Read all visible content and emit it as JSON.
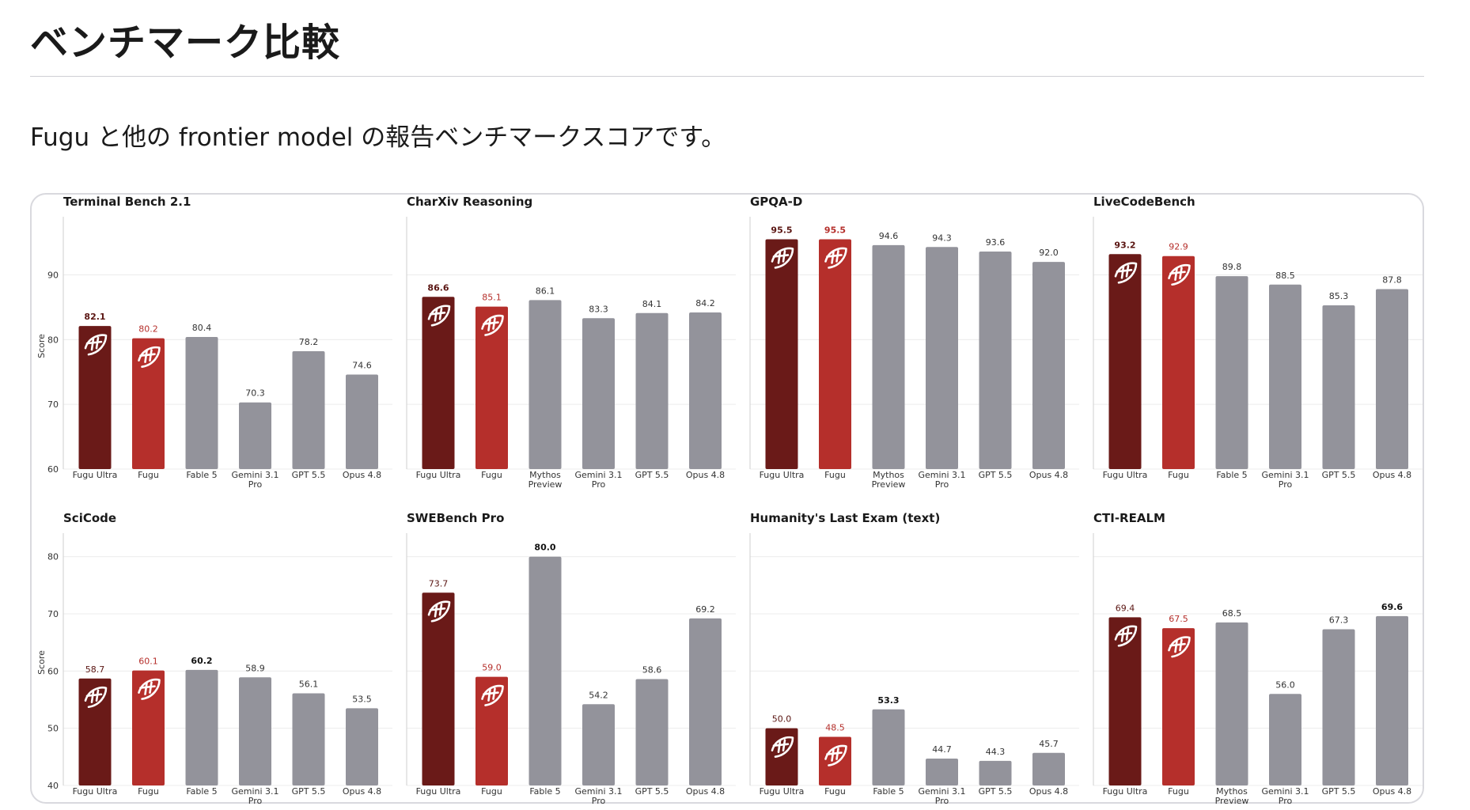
{
  "page": {
    "title": "ベンチマーク比較",
    "intro": "Fugu と他の frontier model の報告ベンチマークスコアです。"
  },
  "colors": {
    "fugu_ultra": "#6a1a18",
    "fugu": "#b52f2b",
    "other": "#93939b",
    "fugu_ultra_label": "#5a1512",
    "fugu_label": "#b52f2b",
    "other_label": "#333333",
    "grid": "#ececec",
    "axis": "#cfcfcf"
  },
  "icons": {
    "bar_logo": "fugu-fish-icon"
  },
  "chart_data": [
    {
      "type": "bar",
      "title": "Terminal Bench 2.1",
      "ylabel": "Score",
      "ylim": [
        60,
        98
      ],
      "yticks": [
        60,
        70,
        80,
        90
      ],
      "categories": [
        "Fugu Ultra",
        "Fugu",
        "Fable 5",
        "Gemini 3.1 Pro",
        "GPT 5.5",
        "Opus 4.8"
      ],
      "values": [
        82.1,
        80.2,
        80.4,
        70.3,
        78.2,
        74.6
      ],
      "value_labels": [
        "82.1",
        "80.2",
        "80.4",
        "70.3",
        "78.2",
        "74.6"
      ],
      "best_index": 0,
      "grid": true
    },
    {
      "type": "bar",
      "title": "CharXiv Reasoning",
      "ylabel": "",
      "ylim": [
        60,
        98
      ],
      "yticks": [
        60,
        70,
        80,
        90
      ],
      "categories": [
        "Fugu Ultra",
        "Fugu",
        "Mythos Preview",
        "Gemini 3.1 Pro",
        "GPT 5.5",
        "Opus 4.8"
      ],
      "values": [
        86.6,
        85.1,
        86.1,
        83.3,
        84.1,
        84.2
      ],
      "value_labels": [
        "86.6",
        "85.1",
        "86.1",
        "83.3",
        "84.1",
        "84.2"
      ],
      "best_index": 0,
      "grid": true
    },
    {
      "type": "bar",
      "title": "GPQA-D",
      "ylabel": "",
      "ylim": [
        60,
        98
      ],
      "yticks": [
        60,
        70,
        80,
        90
      ],
      "categories": [
        "Fugu Ultra",
        "Fugu",
        "Mythos Preview",
        "Gemini 3.1 Pro",
        "GPT 5.5",
        "Opus 4.8"
      ],
      "values": [
        95.5,
        95.5,
        94.6,
        94.3,
        93.6,
        92.0
      ],
      "value_labels": [
        "95.5",
        "95.5",
        "94.6",
        "94.3",
        "93.6",
        "92.0"
      ],
      "best_index": 0,
      "best_index_2": 1,
      "grid": true
    },
    {
      "type": "bar",
      "title": "LiveCodeBench",
      "ylabel": "",
      "ylim": [
        60,
        98
      ],
      "yticks": [
        60,
        70,
        80,
        90
      ],
      "categories": [
        "Fugu Ultra",
        "Fugu",
        "Fable 5",
        "Gemini 3.1 Pro",
        "GPT 5.5",
        "Opus 4.8"
      ],
      "values": [
        93.2,
        92.9,
        89.8,
        88.5,
        85.3,
        87.8
      ],
      "value_labels": [
        "93.2",
        "92.9",
        "89.8",
        "88.5",
        "85.3",
        "87.8"
      ],
      "best_index": 0,
      "grid": true
    },
    {
      "type": "bar",
      "title": "SciCode",
      "ylabel": "Score",
      "ylim": [
        40,
        83
      ],
      "yticks": [
        40,
        50,
        60,
        70,
        80
      ],
      "categories": [
        "Fugu Ultra",
        "Fugu",
        "Fable 5",
        "Gemini 3.1 Pro",
        "GPT 5.5",
        "Opus 4.8"
      ],
      "values": [
        58.7,
        60.1,
        60.2,
        58.9,
        56.1,
        53.5
      ],
      "value_labels": [
        "58.7",
        "60.1",
        "60.2",
        "58.9",
        "56.1",
        "53.5"
      ],
      "best_index": 2,
      "grid": true
    },
    {
      "type": "bar",
      "title": "SWEBench Pro",
      "ylabel": "",
      "ylim": [
        40,
        83
      ],
      "yticks": [
        40,
        50,
        60,
        70,
        80
      ],
      "categories": [
        "Fugu Ultra",
        "Fugu",
        "Fable 5",
        "Gemini 3.1 Pro",
        "GPT 5.5",
        "Opus 4.8"
      ],
      "values": [
        73.7,
        59.0,
        80.0,
        54.2,
        58.6,
        69.2
      ],
      "value_labels": [
        "73.7",
        "59.0",
        "80.0",
        "54.2",
        "58.6",
        "69.2"
      ],
      "best_index": 2,
      "grid": true
    },
    {
      "type": "bar",
      "title": "Humanity's Last Exam (text)",
      "ylabel": "",
      "ylim": [
        40,
        83
      ],
      "yticks": [
        40,
        50,
        60,
        70,
        80
      ],
      "categories": [
        "Fugu Ultra",
        "Fugu",
        "Fable 5",
        "Gemini 3.1 Pro",
        "GPT 5.5",
        "Opus 4.8"
      ],
      "values": [
        50.0,
        48.5,
        53.3,
        44.7,
        44.3,
        45.7
      ],
      "value_labels": [
        "50.0",
        "48.5",
        "53.3",
        "44.7",
        "44.3",
        "45.7"
      ],
      "best_index": 2,
      "grid": true
    },
    {
      "type": "bar",
      "title": "CTI-REALM",
      "ylabel": "",
      "ylim": [
        40,
        83
      ],
      "yticks": [
        40,
        50,
        60,
        70,
        80
      ],
      "categories": [
        "Fugu Ultra",
        "Fugu",
        "Mythos Preview",
        "Gemini 3.1 Pro",
        "GPT 5.5",
        "Opus 4.8"
      ],
      "values": [
        69.4,
        67.5,
        68.5,
        56.0,
        67.3,
        69.6
      ],
      "value_labels": [
        "69.4",
        "67.5",
        "68.5",
        "56.0",
        "67.3",
        "69.6"
      ],
      "best_index": 5,
      "grid": true
    }
  ]
}
